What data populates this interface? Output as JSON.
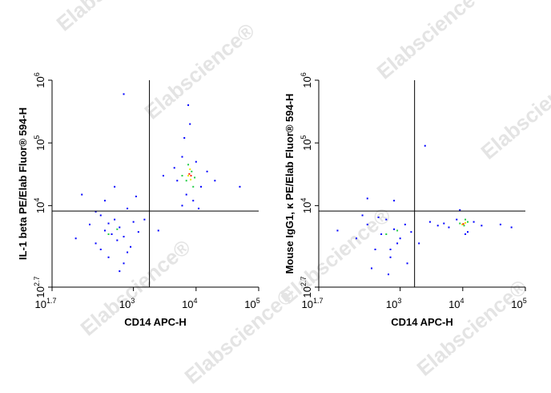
{
  "watermark": "Elabscience®",
  "chart_data": [
    {
      "type": "scatter",
      "xlabel": "CD14 APC-H",
      "ylabel": "IL-1 beta PE/Elab Fluor® 594-H",
      "log_x": true,
      "log_y": true,
      "xlim": [
        50.1187,
        100000
      ],
      "ylim": [
        501.187,
        1000000
      ],
      "xticks": [
        {
          "value": 50.1187,
          "label": "10",
          "exponent": "1.7"
        },
        {
          "value": 1000,
          "label": "10",
          "exponent": "3"
        },
        {
          "value": 10000,
          "label": "10",
          "exponent": "4"
        },
        {
          "value": 100000,
          "label": "10",
          "exponent": "5"
        }
      ],
      "yticks": [
        {
          "value": 501.187,
          "label": "10",
          "exponent": "2.7"
        },
        {
          "value": 10000,
          "label": "10",
          "exponent": "4"
        },
        {
          "value": 100000,
          "label": "10",
          "exponent": "5"
        },
        {
          "value": 1000000,
          "label": "10",
          "exponent": "6"
        }
      ],
      "gates": {
        "x": 1800,
        "y": 8200
      },
      "series": [
        {
          "color": "#0000ff",
          "x": [
            120,
            200,
            250,
            300,
            350,
            400,
            450,
            500,
            550,
            600,
            700,
            800,
            900,
            1000,
            1200,
            350,
            150,
            500,
            700,
            250,
            600,
            400,
            300,
            800,
            1500,
            1100,
            5000,
            6000,
            7000,
            9000,
            12000,
            4500,
            10000,
            15000,
            8000,
            7500,
            6500,
            3000,
            20000,
            50000,
            2500,
            700,
            6000,
            11000
          ],
          "y": [
            3000,
            5000,
            2500,
            7000,
            4000,
            1500,
            3500,
            6000,
            2800,
            4500,
            3200,
            9000,
            2200,
            5500,
            3800,
            12000,
            15000,
            20000,
            1200,
            8000,
            900,
            5200,
            2000,
            1800,
            6000,
            14000,
            25000,
            60000,
            15000,
            12000,
            20000,
            40000,
            50000,
            35000,
            200000,
            400000,
            120000,
            30000,
            25000,
            20000,
            4000,
            600000,
            10000,
            9000
          ]
        },
        {
          "color": "#22cc44",
          "x": [
            7000,
            8500,
            6000,
            9500,
            400,
            550,
            7500,
            9000
          ],
          "y": [
            25000,
            35000,
            30000,
            28000,
            3500,
            4200,
            45000,
            20000
          ]
        },
        {
          "color": "#e8e800",
          "x": [
            7500,
            8200,
            8000
          ],
          "y": [
            30000,
            26000,
            38000
          ]
        },
        {
          "color": "#ff2200",
          "x": [
            7800,
            8300
          ],
          "y": [
            32000,
            30000
          ]
        }
      ]
    },
    {
      "type": "scatter",
      "xlabel": "CD14 APC-H",
      "ylabel": "Mouse IgG1, κ PE/Elab Fluor® 594-H",
      "log_x": true,
      "log_y": true,
      "xlim": [
        50.1187,
        100000
      ],
      "ylim": [
        501.187,
        1000000
      ],
      "xticks": [
        {
          "value": 50.1187,
          "label": "10",
          "exponent": "1.7"
        },
        {
          "value": 1000,
          "label": "10",
          "exponent": "3"
        },
        {
          "value": 10000,
          "label": "10",
          "exponent": "4"
        },
        {
          "value": 100000,
          "label": "10",
          "exponent": "5"
        }
      ],
      "yticks": [
        {
          "value": 501.187,
          "label": "10",
          "exponent": "2.7"
        },
        {
          "value": 10000,
          "label": "10",
          "exponent": "4"
        },
        {
          "value": 100000,
          "label": "10",
          "exponent": "5"
        },
        {
          "value": 1000000,
          "label": "10",
          "exponent": "6"
        }
      ],
      "gates": {
        "x": 1700,
        "y": 8200
      },
      "series": [
        {
          "color": "#0000ff",
          "x": [
            100,
            200,
            300,
            400,
            500,
            600,
            700,
            800,
            900,
            1000,
            1200,
            1500,
            350,
            650,
            450,
            250,
            800,
            2500,
            3000,
            4000,
            5000,
            6000,
            8000,
            12000,
            15000,
            20000,
            40000,
            60000,
            9000,
            11000,
            700,
            300,
            1300,
            2000
          ],
          "y": [
            4000,
            3000,
            5000,
            2000,
            3500,
            6000,
            1500,
            4200,
            2500,
            3000,
            5000,
            3800,
            1000,
            800,
            6500,
            7000,
            12000,
            90000,
            5500,
            4800,
            5200,
            4500,
            6000,
            3800,
            5500,
            4800,
            5000,
            4500,
            8500,
            3500,
            2000,
            13000,
            1200,
            2500
          ]
        },
        {
          "color": "#22cc44",
          "x": [
            9000,
            10500,
            12000,
            600,
            900,
            11000
          ],
          "y": [
            5200,
            4800,
            5500,
            3500,
            4000,
            6000
          ]
        },
        {
          "color": "#e8e800",
          "x": [
            9800,
            11000
          ],
          "y": [
            5000,
            5300
          ]
        },
        {
          "color": "#ff2200",
          "x": [
            10200
          ],
          "y": [
            5100
          ]
        }
      ]
    }
  ]
}
